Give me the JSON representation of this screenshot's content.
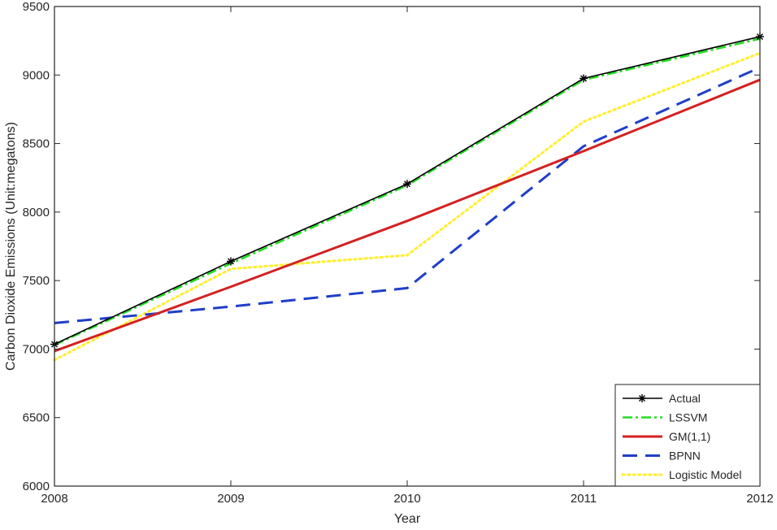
{
  "chart_data": {
    "type": "line",
    "title": "",
    "xlabel": "Year",
    "ylabel": "Carbon  Dioxide Emissions (Unit:megatons)",
    "x": [
      2008,
      2009,
      2010,
      2011,
      2012
    ],
    "xlim": [
      2008,
      2012
    ],
    "ylim": [
      6000,
      9500
    ],
    "xticks": [
      "2008",
      "2009",
      "2010",
      "2011",
      "2012"
    ],
    "yticks": [
      "6000",
      "6500",
      "7000",
      "7500",
      "8000",
      "8500",
      "9000",
      "9500"
    ],
    "grid": false,
    "legend_position": "bottom-right",
    "series": [
      {
        "name": "Actual",
        "values": [
          7035,
          7640,
          8205,
          8975,
          9280
        ],
        "color": "#000000",
        "style": "solid-star"
      },
      {
        "name": "LSSVM",
        "values": [
          7030,
          7625,
          8195,
          8965,
          9265
        ],
        "color": "#22dd22",
        "style": "dashdot"
      },
      {
        "name": "GM(1,1)",
        "values": [
          6985,
          7455,
          7935,
          8445,
          8965
        ],
        "color": "#d42020",
        "style": "solid"
      },
      {
        "name": "BPNN",
        "values": [
          7190,
          7310,
          7445,
          8480,
          9055
        ],
        "color": "#1f3fc8",
        "style": "dashed"
      },
      {
        "name": "Logistic Model",
        "values": [
          6920,
          7585,
          7685,
          8660,
          9160
        ],
        "color": "#ffee33",
        "style": "dotted"
      }
    ]
  }
}
